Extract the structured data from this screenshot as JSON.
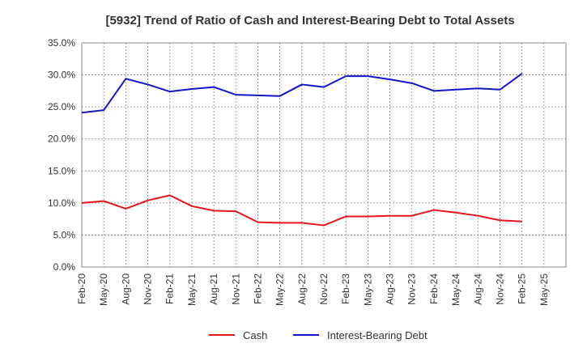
{
  "chart_data": {
    "type": "line",
    "title": "[5932]  Trend of Ratio of Cash and Interest-Bearing Debt to Total Assets",
    "xlabel": "",
    "ylabel": "",
    "ylim": [
      0,
      35
    ],
    "y_ticks": [
      "0.0%",
      "5.0%",
      "10.0%",
      "15.0%",
      "20.0%",
      "25.0%",
      "30.0%",
      "35.0%"
    ],
    "x_ticks": [
      "Feb-20",
      "May-20",
      "Aug-20",
      "Nov-20",
      "Feb-21",
      "May-21",
      "Aug-21",
      "Nov-21",
      "Feb-22",
      "May-22",
      "Aug-22",
      "Nov-22",
      "Feb-23",
      "May-23",
      "Aug-23",
      "Nov-23",
      "Feb-24",
      "May-24",
      "Aug-24",
      "Nov-24",
      "Feb-25",
      "May-25"
    ],
    "grid": true,
    "legend_position": "bottom",
    "series": [
      {
        "name": "Cash",
        "color": "#e8141c",
        "values": [
          10.0,
          10.3,
          9.1,
          10.4,
          11.2,
          9.5,
          8.8,
          8.7,
          7.0,
          6.9,
          6.9,
          6.5,
          7.9,
          7.9,
          8.0,
          8.0,
          8.9,
          8.5,
          8.0,
          7.3,
          7.1
        ]
      },
      {
        "name": "Interest-Bearing Debt",
        "color": "#1414c8",
        "values": [
          24.1,
          24.5,
          29.4,
          28.5,
          27.4,
          27.8,
          28.1,
          26.9,
          26.8,
          26.7,
          28.5,
          28.1,
          29.8,
          29.8,
          29.3,
          28.7,
          27.5,
          27.7,
          27.9,
          27.7,
          30.2
        ]
      }
    ]
  }
}
